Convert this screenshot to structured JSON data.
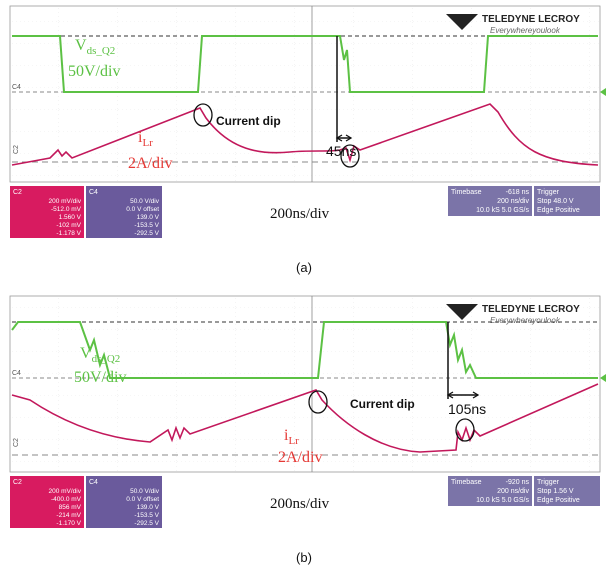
{
  "logo": {
    "brand": "TELEDYNE LECROY",
    "tagline": "Everywhereyoulook"
  },
  "panels": [
    {
      "caption": "(a)",
      "vds": {
        "symbol": "V",
        "subscript": "ds_Q2",
        "scale": "50V/div"
      },
      "ilr": {
        "symbol": "i",
        "subscript": "Lr",
        "scale": "2A/div"
      },
      "annotation": "Current dip",
      "delay": "45ns",
      "timebase_label": "200ns/div",
      "ch_markers": [
        "C4",
        "C2"
      ],
      "c2": {
        "name": "C2",
        "rows": [
          "200 mV/div",
          "-512.0 mV",
          "1.560 V",
          "-102 mV",
          "-1.178 V"
        ]
      },
      "c4": {
        "name": "C4",
        "rows": [
          "50.0 V/div",
          "0.0 V offset",
          "139.0 V",
          "-153.5 V",
          "-292.5 V"
        ]
      },
      "timebase": {
        "title": "Timebase",
        "offset": "-618 ns",
        "rows": [
          "200 ns/div",
          "10.0 kS  5.0 GS/s"
        ]
      },
      "trigger": {
        "title": "Trigger",
        "rows": [
          "Stop  48.0 V",
          "Edge  Positive"
        ]
      }
    },
    {
      "caption": "(b)",
      "vds": {
        "symbol": "V",
        "subscript": "ds_Q2",
        "scale": "50V/div"
      },
      "ilr": {
        "symbol": "i",
        "subscript": "Lr",
        "scale": "2A/div"
      },
      "annotation": "Current dip",
      "delay": "105ns",
      "timebase_label": "200ns/div",
      "ch_markers": [
        "C4",
        "C2"
      ],
      "c2": {
        "name": "C2",
        "rows": [
          "200 mV/div",
          "-400.0 mV",
          "856 mV",
          "-214 mV",
          "-1.170 V"
        ]
      },
      "c4": {
        "name": "C4",
        "rows": [
          "50.0 V/div",
          "0.0 V offset",
          "139.0 V",
          "-153.5 V",
          "-292.5 V"
        ]
      },
      "timebase": {
        "title": "Timebase",
        "offset": "-920 ns",
        "rows": [
          "200 ns/div",
          "10.0 kS  5.0 GS/s"
        ]
      },
      "trigger": {
        "title": "Trigger",
        "rows": [
          "Stop  1.56 V",
          "Edge  Positive"
        ]
      }
    }
  ]
}
